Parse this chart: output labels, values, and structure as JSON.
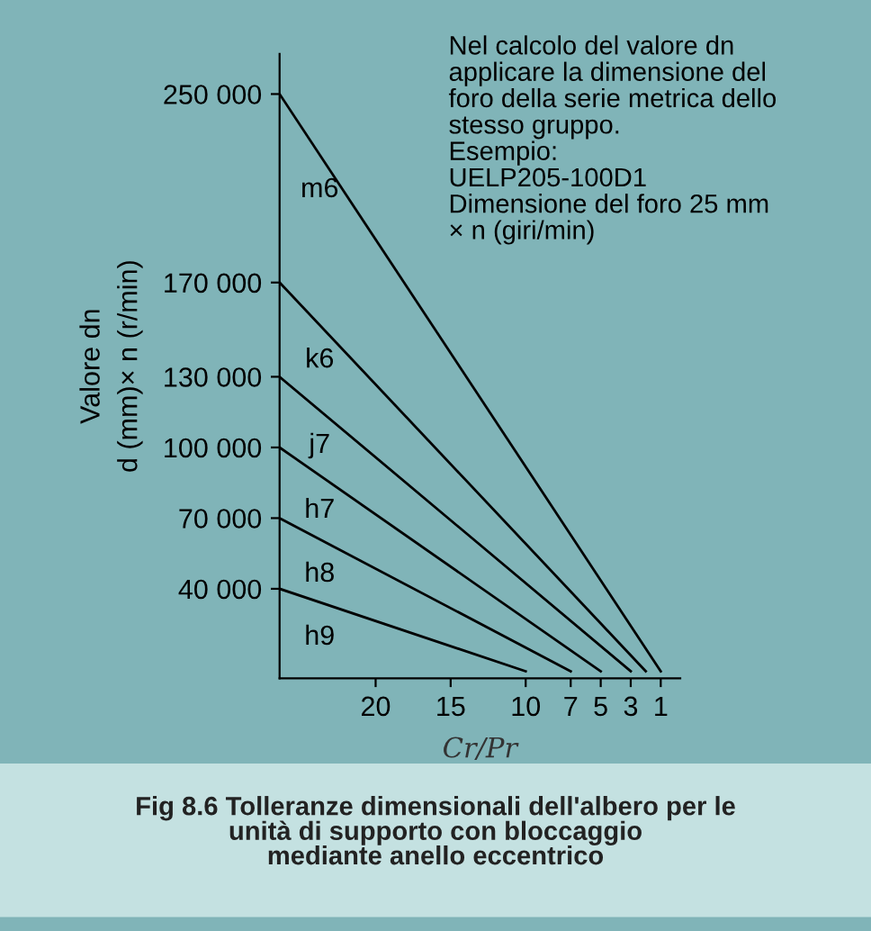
{
  "chart_data": {
    "type": "line",
    "title": "Fig 8.6 Tolleranze dimensionali dell'albero per le\nunità di supporto con bloccaggio\nmediante anello eccentrico",
    "xlabel": "Cr/Pr",
    "ylabel": "Valore dn\nd (mm)× n (r/min)",
    "series": [
      {
        "name": "m6",
        "color": "#000000",
        "x": [
          26.4,
          1
        ],
        "values": [
          250000,
          5000
        ]
      },
      {
        "name": "k6",
        "color": "#000000",
        "x": [
          26.4,
          2
        ],
        "values": [
          170000,
          5000
        ]
      },
      {
        "name": "j7",
        "color": "#000000",
        "x": [
          26.4,
          3
        ],
        "values": [
          130000,
          5000
        ]
      },
      {
        "name": "h7",
        "color": "#000000",
        "x": [
          26.4,
          5
        ],
        "values": [
          100000,
          5000
        ]
      },
      {
        "name": "h8",
        "color": "#000000",
        "x": [
          26.4,
          7
        ],
        "values": [
          70000,
          5000
        ]
      },
      {
        "name": "h9",
        "color": "#000000",
        "x": [
          26.4,
          10
        ],
        "values": [
          40000,
          5000
        ]
      }
    ],
    "annotations": [
      "Nel calcolo del valore dn\napplicare la dimensione del\nforo della serie metrica dello\nstesso gruppo.\nEsempio:\nUELP205-100D1\nDimensione del foro 25 mm\n× n (giri/min)"
    ],
    "xlim": [
      26.4,
      -0.3
    ],
    "ylim": [
      2000,
      267000
    ],
    "xticks": [
      20,
      15,
      10,
      7,
      5,
      3,
      1
    ],
    "yticks": [
      {
        "value": 250000,
        "label": "250 000"
      },
      {
        "value": 170000,
        "label": "170 000"
      },
      {
        "value": 130000,
        "label": "130 000"
      },
      {
        "value": 100000,
        "label": "100 000"
      },
      {
        "value": 70000,
        "label": "70 000"
      },
      {
        "value": 40000,
        "label": "40 000"
      }
    ],
    "grid": false,
    "marker": "none",
    "line_style": "solid"
  }
}
